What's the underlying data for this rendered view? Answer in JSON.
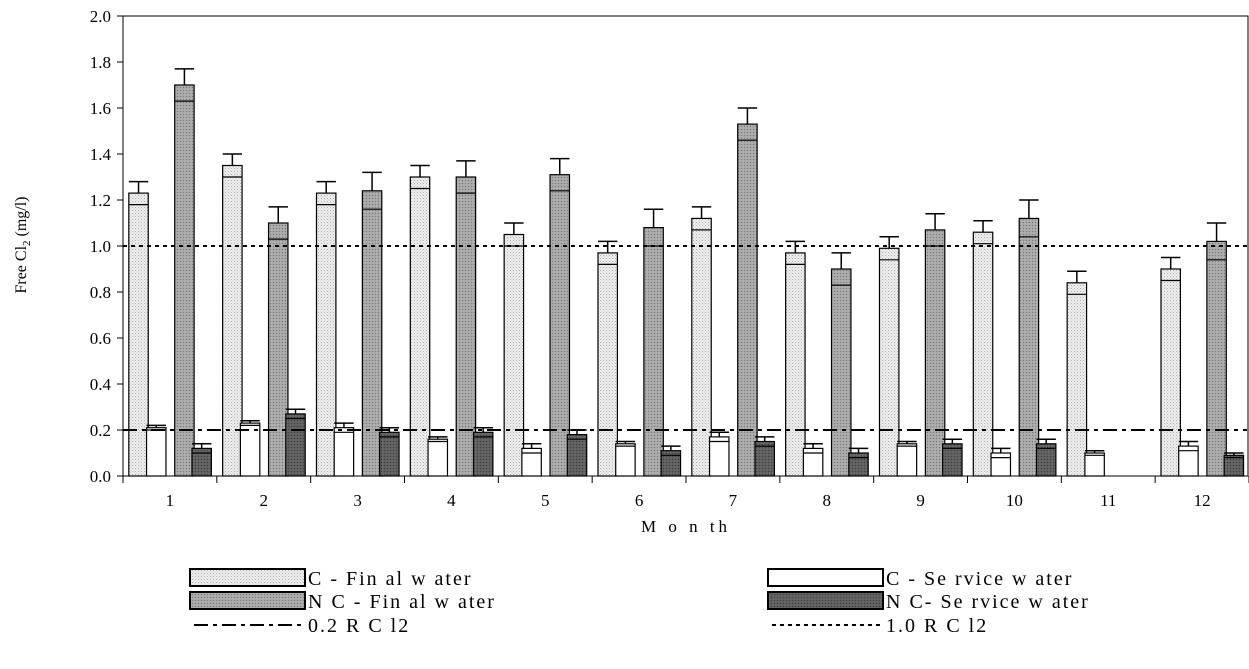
{
  "chart_data": {
    "type": "bar",
    "xlabel": "M o n th",
    "ylabel_main": "Free Cl",
    "ylabel_sub": "2",
    "ylabel_unit": " (mg/l)",
    "ylim": [
      0,
      2.0
    ],
    "yticks": [
      "0.0",
      "0.2",
      "0.4",
      "0.6",
      "0.8",
      "1.0",
      "1.2",
      "1.4",
      "1.6",
      "1.8",
      "2.0"
    ],
    "categories": [
      "1",
      "2",
      "3",
      "4",
      "5",
      "6",
      "7",
      "8",
      "9",
      "10",
      "11",
      "12"
    ],
    "series": [
      {
        "name": "C - Fin al w ater",
        "pattern": "pat-light",
        "values": [
          1.23,
          1.35,
          1.23,
          1.3,
          1.05,
          0.97,
          1.12,
          0.97,
          0.99,
          1.06,
          0.84,
          0.9
        ],
        "errors": [
          0.05,
          0.05,
          0.05,
          0.05,
          0.05,
          0.05,
          0.05,
          0.05,
          0.05,
          0.05,
          0.05,
          0.05
        ]
      },
      {
        "name": "C - Se rvice w ater",
        "pattern": "white",
        "values": [
          0.21,
          0.23,
          0.21,
          0.16,
          0.12,
          0.14,
          0.17,
          0.12,
          0.14,
          0.1,
          0.1,
          0.13
        ],
        "errors": [
          0.01,
          0.01,
          0.02,
          0.01,
          0.02,
          0.01,
          0.02,
          0.02,
          0.01,
          0.02,
          0.01,
          0.02
        ]
      },
      {
        "name": "N C - Fin al w ater",
        "pattern": "pat-mid",
        "values": [
          1.7,
          1.1,
          1.24,
          1.3,
          1.31,
          1.08,
          1.53,
          0.9,
          1.07,
          1.12,
          null,
          1.02
        ],
        "errors": [
          0.07,
          0.07,
          0.08,
          0.07,
          0.07,
          0.08,
          0.07,
          0.07,
          0.07,
          0.08,
          null,
          0.08
        ]
      },
      {
        "name": "N C- Se rvice w ater",
        "pattern": "pat-dark",
        "values": [
          0.12,
          0.27,
          0.19,
          0.19,
          0.18,
          0.11,
          0.15,
          0.1,
          0.14,
          0.14,
          null,
          0.09
        ],
        "errors": [
          0.02,
          0.02,
          0.02,
          0.02,
          0.02,
          0.02,
          0.02,
          0.02,
          0.02,
          0.02,
          null,
          0.01
        ]
      }
    ],
    "reference_lines": [
      {
        "name": "0.2 R C l2",
        "value": 0.2,
        "style": "dash-dot"
      },
      {
        "name": "1.0 R C l2",
        "value": 1.0,
        "style": "dotted"
      }
    ],
    "legend": {
      "placement": "bottom",
      "entries": [
        {
          "label": "C - Fin al w ater",
          "kind": "swatch",
          "pattern": "pat-light"
        },
        {
          "label": "C - Se rvice w ater",
          "kind": "swatch",
          "pattern": "white"
        },
        {
          "label": "N C - Fin al w ater",
          "kind": "swatch",
          "pattern": "pat-mid"
        },
        {
          "label": "N C- Se rvice w ater",
          "kind": "swatch",
          "pattern": "pat-dark"
        },
        {
          "label": "0.2 R C l2",
          "kind": "line",
          "style": "dash-dot"
        },
        {
          "label": "1.0 R C l2",
          "kind": "line",
          "style": "dotted"
        }
      ]
    }
  }
}
